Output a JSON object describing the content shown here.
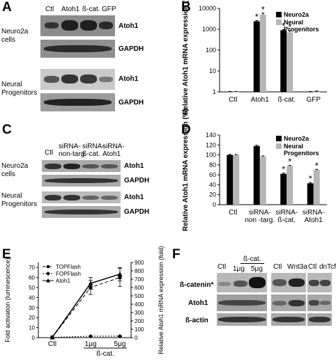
{
  "panels": {
    "A": "A",
    "B": "B",
    "C": "C",
    "D": "D",
    "E": "E",
    "F": "F"
  },
  "panelA": {
    "lanes": [
      "Ctl",
      "Atoh1",
      "ß-cat.",
      "GFP"
    ],
    "row_groups": [
      {
        "label": "Neuro2a\ncells",
        "blots": [
          "Atoh1",
          "GAPDH"
        ]
      },
      {
        "label": "Neural\nProgenitors",
        "blots": [
          "Atoh1",
          "GAPDH"
        ]
      }
    ]
  },
  "panelC": {
    "lanes": [
      "Ctl",
      "siRNA-\nnon-targ.",
      "siRNA-\nß-cat.",
      "siRNA-\nAtoh1"
    ],
    "row_groups": [
      {
        "label": "Neuro2a\ncells",
        "blots": [
          "Atoh1",
          "GAPDH"
        ]
      },
      {
        "label": "Neural\nProgenitors",
        "blots": [
          "Atoh1",
          "GAPDH"
        ]
      }
    ]
  },
  "panelF": {
    "groups": [
      {
        "lanes": [
          "Ctl",
          "ß-cat.\n1μg",
          "ß-cat.\n5μg"
        ],
        "header": "ß-cat.",
        "sub": [
          "1μg",
          "5μg"
        ]
      },
      {
        "lanes": [
          "Ctl",
          "Wnt3a"
        ]
      },
      {
        "lanes": [
          "Ctl",
          "dnTcf"
        ]
      }
    ],
    "rows": [
      "ß-catenin*",
      "Atoh1",
      "ß-actin"
    ]
  },
  "chart_data": [
    {
      "panel": "B",
      "type": "bar",
      "categories": [
        "Ctl",
        "Atoh1",
        "ß-cat.",
        "GFP"
      ],
      "series": [
        {
          "name": "Neuro2a",
          "values": [
            1,
            2400,
            900,
            1
          ],
          "errors": [
            0.05,
            200,
            60,
            0.05
          ],
          "significant": [
            false,
            true,
            true,
            false
          ]
        },
        {
          "name": "Neural Progenitors",
          "values": [
            1,
            5000,
            700,
            1
          ],
          "errors": [
            0.05,
            900,
            150,
            0.1
          ],
          "significant": [
            false,
            true,
            true,
            false
          ]
        }
      ],
      "ylabel": "Relative Atoh1 mRNA expression (fold)",
      "yscale": "log",
      "ylim": [
        1,
        10000
      ],
      "yticks": [
        "1",
        "10",
        "100",
        "1000",
        "10000"
      ],
      "legend": "top-right",
      "colors": {
        "Neuro2a": "#000000",
        "Neural Progenitors": "#b5b5b5"
      }
    },
    {
      "panel": "D",
      "type": "bar",
      "categories": [
        "Ctl",
        "siRNA-\nnon -targ.",
        "siRNA-\nß-cat.",
        "siRNA-\nAtoh1"
      ],
      "series": [
        {
          "name": "Neuro2a",
          "values": [
            100,
            118,
            62,
            43
          ],
          "errors": [
            1,
            1.5,
            1.5,
            1.5
          ],
          "significant": [
            false,
            false,
            true,
            true
          ]
        },
        {
          "name": "Neural Progenitors",
          "values": [
            100,
            97,
            78,
            70
          ],
          "errors": [
            1,
            1,
            1,
            1
          ],
          "significant": [
            false,
            false,
            true,
            true
          ]
        }
      ],
      "ylabel": "Relative Atoh1 mRNA expression (%)",
      "ylim": [
        0,
        140
      ],
      "yticks": [
        "0",
        "20",
        "40",
        "60",
        "80",
        "100",
        "120",
        "140"
      ],
      "legend": "top-right",
      "colors": {
        "Neuro2a": "#000000",
        "Neural Progenitors": "#b5b5b5"
      }
    },
    {
      "panel": "E",
      "type": "line",
      "x": [
        "Ctl",
        "1μg",
        "5μg"
      ],
      "xgroup": "ß-cat.",
      "series": [
        {
          "name": "TOPFlash",
          "axis": "left",
          "values": [
            0.3,
            50,
            60
          ],
          "errors": [
            0,
            7,
            9
          ]
        },
        {
          "name": "FOPFlash",
          "axis": "left",
          "values": [
            0.2,
            1.5,
            1.5
          ],
          "errors": [
            0,
            0.3,
            0.3
          ]
        },
        {
          "name": "Atoh1",
          "axis": "right",
          "values": [
            4,
            650,
            760
          ],
          "errors": [
            0,
            70,
            80
          ]
        }
      ],
      "ylabel": "Fold activation (luminescence)",
      "ylabel_right": "Relative Atoh1 mRNA expression (fold)",
      "ylim": [
        0,
        75
      ],
      "ylim_right": [
        0,
        900
      ],
      "yticks": [
        "0",
        "10",
        "20",
        "30",
        "40",
        "50",
        "60",
        "70"
      ],
      "yticks_right": [
        "0",
        "100",
        "200",
        "300",
        "400",
        "500",
        "600",
        "700",
        "800",
        "900"
      ],
      "legend": "top-left"
    }
  ]
}
